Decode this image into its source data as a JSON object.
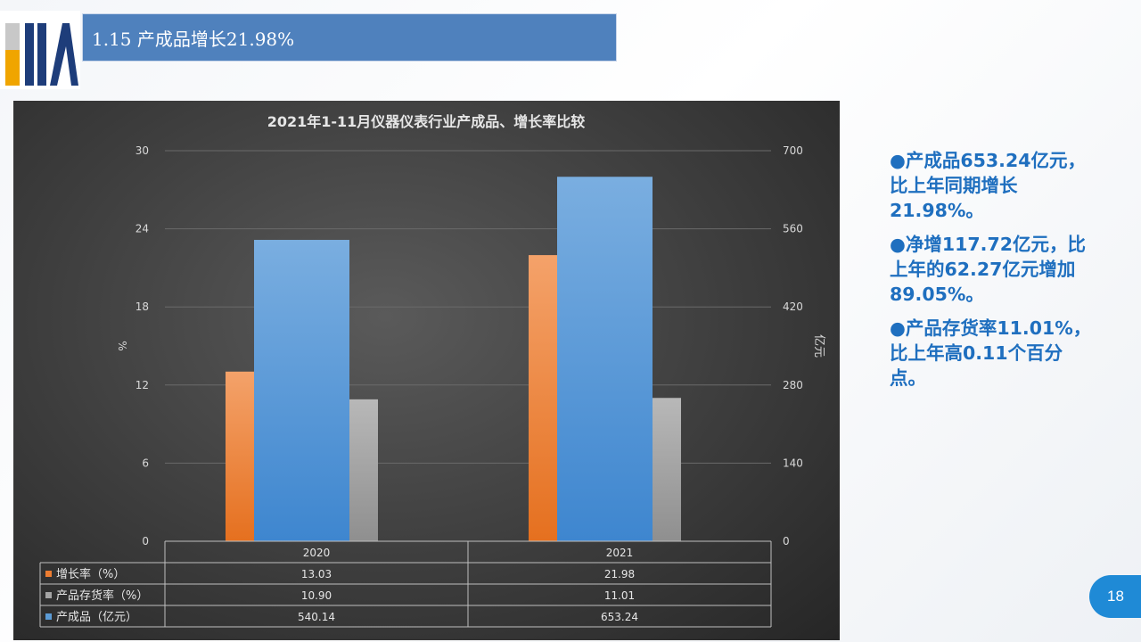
{
  "logo": {
    "text": "SIIA"
  },
  "header": {
    "title": "1.15 产成品增长21.98%"
  },
  "chart_data": {
    "type": "bar",
    "title": "2021年1-11月仪器仪表行业产成品、增长率比较",
    "categories": [
      "2020",
      "2021"
    ],
    "series": [
      {
        "name": "增长率（%）",
        "axis": "left",
        "color": "#ed7d31",
        "values": [
          13.03,
          21.98
        ],
        "labels": [
          "13.03",
          "21.98"
        ]
      },
      {
        "name": "产成品（亿元）",
        "axis": "right",
        "color": "#5b9bd5",
        "values": [
          540.14,
          653.24
        ],
        "labels": [
          "540.14",
          "653.24"
        ]
      },
      {
        "name": "产品存货率（%）",
        "axis": "left",
        "color": "#a5a5a5",
        "values": [
          10.9,
          11.01
        ],
        "labels": [
          "10.90",
          "11.01"
        ]
      }
    ],
    "ylabel": "%",
    "ylabel_right": "亿元",
    "ylim": [
      0,
      30
    ],
    "ylim_right": [
      0,
      700
    ],
    "yticks": [
      "0",
      "6",
      "12",
      "18",
      "24",
      "30"
    ],
    "yticks_right": [
      "0",
      "140",
      "280",
      "420",
      "560",
      "700"
    ],
    "table_rows": [
      {
        "label": "增长率（%）",
        "color": "#ed7d31",
        "values": [
          "13.03",
          "21.98"
        ]
      },
      {
        "label": "产品存货率（%）",
        "color": "#a5a5a5",
        "values": [
          "10.90",
          "11.01"
        ]
      },
      {
        "label": "产成品（亿元）",
        "color": "#5b9bd5",
        "values": [
          "540.14",
          "653.24"
        ]
      }
    ],
    "grid": true
  },
  "bullets": [
    "●产成品653.24亿元，比上年同期增长21.98%。",
    "●净增117.72亿元，比上年的62.27亿元增加89.05%。",
    "●产品存货率11.01%，比上年高0.11个百分点。"
  ],
  "page_number": "18"
}
